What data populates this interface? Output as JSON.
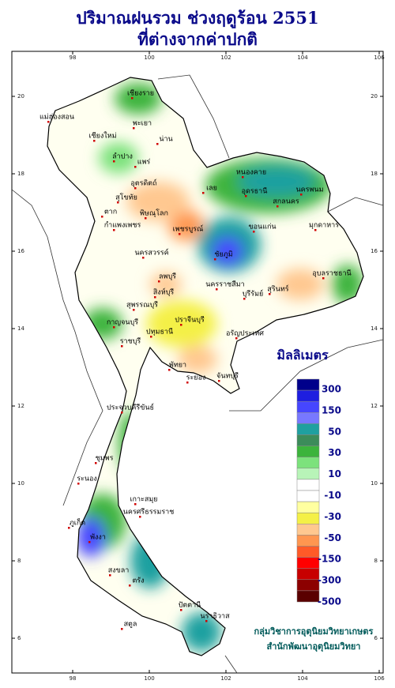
{
  "title": [
    "ปริมาณฝนรวม ช่วงฤดูร้อน 2551",
    "ที่ต่างจากค่าปกติ"
  ],
  "map": {
    "lon_ticks": [
      98,
      100,
      102,
      104,
      106
    ],
    "lat_ticks": [
      6,
      8,
      10,
      12,
      14,
      16,
      18,
      20
    ],
    "places": [
      "เชียงราย",
      "แม่ฮ่องสอน",
      "พะเยา",
      "เชียงใหม่",
      "น่าน",
      "ลำปาง",
      "แพร่",
      "อุตรดิตถ์",
      "สุโขทัย",
      "ตาก",
      "พิษณุโลก",
      "กำแพงเพชร",
      "เพชรบูรณ์",
      "เลย",
      "หนองคาย",
      "อุดรธานี",
      "สกลนคร",
      "นครพนม",
      "มุกดาหาร",
      "ขอนแก่น",
      "ชัยภูมิ",
      "นครสวรรค์",
      "นครราชสีมา",
      "บุรีรัมย์",
      "สุรินทร์",
      "อุบลราชธานี",
      "ลพบุรี",
      "สิงห์บุรี",
      "สุพรรณบุรี",
      "กาญจนบุรี",
      "ปทุมธานี",
      "ราชบุรี",
      "ปราจีนบุรี",
      "อรัญประเทศ",
      "พัทยา",
      "ระยอง",
      "จันทบุรี",
      "ประจวบคีรีขันธ์",
      "ชุมพร",
      "ระนอง",
      "เกาะสมุย",
      "นครศรีธรรมราช",
      "ภูเก็ต",
      "พังงา",
      "ตรัง",
      "สงขลา",
      "สตูล",
      "ปัตตานี",
      "นราธิวาส"
    ]
  },
  "legend": {
    "title": "มิลลิเมตร",
    "labels": [
      300,
      150,
      50,
      30,
      10,
      -10,
      -30,
      -50,
      -150,
      -300,
      -500
    ],
    "colors": [
      "#00008b",
      "#1e1ee0",
      "#4646ff",
      "#7878ff",
      "#1fa0a0",
      "#3c8c5a",
      "#3cb43c",
      "#7ce27c",
      "#b8f4b8",
      "#ffffff",
      "#ffffff",
      "#ffffa0",
      "#f4f046",
      "#ffc890",
      "#ff9650",
      "#ff5a28",
      "#ff0000",
      "#c80000",
      "#8c0000",
      "#5a0000"
    ]
  },
  "credits": [
    "กลุ่มวิชาการอุตุนิยมวิทยาเกษตร",
    "สำนักพัฒนาอุตุนิยมวิทยา"
  ]
}
